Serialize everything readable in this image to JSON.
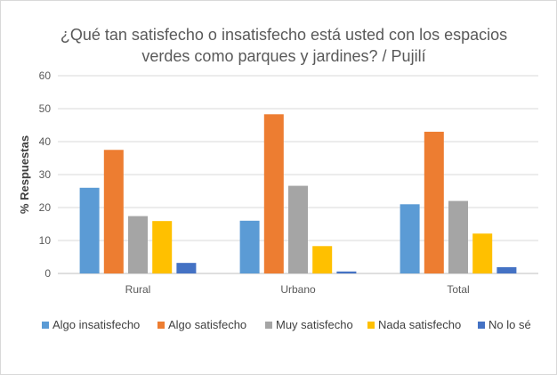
{
  "chart_data": {
    "type": "bar",
    "title_line1": "¿Qué tan satisfecho o insatisfecho está usted con los espacios",
    "title_line2": "verdes como parques y jardines? / Pujilí",
    "xlabel": "",
    "ylabel": "% Respuestas",
    "ylim": [
      0,
      60
    ],
    "yticks": [
      "0",
      "10",
      "20",
      "30",
      "40",
      "50",
      "60"
    ],
    "grid": true,
    "legend_position": "bottom",
    "categories": [
      "Rural",
      "Urbano",
      "Total"
    ],
    "series": [
      {
        "name": "Algo insatisfecho",
        "color": "#5b9bd5",
        "values": [
          26,
          16,
          21
        ]
      },
      {
        "name": "Algo satisfecho",
        "color": "#ed7d31",
        "values": [
          37.5,
          48.3,
          43
        ]
      },
      {
        "name": "Muy satisfecho",
        "color": "#a5a5a5",
        "values": [
          17.4,
          26.6,
          22
        ]
      },
      {
        "name": "Nada satisfecho",
        "color": "#ffc000",
        "values": [
          15.9,
          8.3,
          12.1
        ]
      },
      {
        "name": "No lo sé",
        "color": "#4472c4",
        "values": [
          3.2,
          0.6,
          1.9
        ]
      }
    ]
  }
}
